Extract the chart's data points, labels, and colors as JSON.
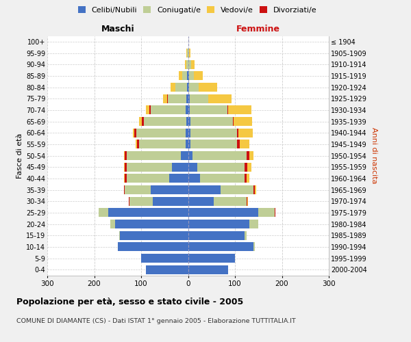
{
  "age_groups": [
    "0-4",
    "5-9",
    "10-14",
    "15-19",
    "20-24",
    "25-29",
    "30-34",
    "35-39",
    "40-44",
    "45-49",
    "50-54",
    "55-59",
    "60-64",
    "65-69",
    "70-74",
    "75-79",
    "80-84",
    "85-89",
    "90-94",
    "95-99",
    "100+"
  ],
  "birth_years": [
    "2000-2004",
    "1995-1999",
    "1990-1994",
    "1985-1989",
    "1980-1984",
    "1975-1979",
    "1970-1974",
    "1965-1969",
    "1960-1964",
    "1955-1959",
    "1950-1954",
    "1945-1949",
    "1940-1944",
    "1935-1939",
    "1930-1934",
    "1925-1929",
    "1920-1924",
    "1915-1919",
    "1910-1914",
    "1905-1909",
    "≤ 1904"
  ],
  "males": {
    "celibi": [
      90,
      100,
      150,
      145,
      155,
      170,
      75,
      80,
      40,
      35,
      15,
      5,
      5,
      4,
      5,
      3,
      2,
      2,
      0,
      0,
      0
    ],
    "coniugati": [
      0,
      0,
      0,
      2,
      10,
      20,
      50,
      55,
      90,
      95,
      115,
      100,
      105,
      90,
      75,
      40,
      25,
      10,
      4,
      2,
      0
    ],
    "vedovi": [
      0,
      0,
      0,
      0,
      0,
      0,
      0,
      0,
      1,
      2,
      2,
      2,
      3,
      5,
      8,
      10,
      10,
      8,
      3,
      1,
      0
    ],
    "divorziati": [
      0,
      0,
      0,
      0,
      1,
      1,
      2,
      2,
      5,
      5,
      5,
      4,
      5,
      5,
      2,
      1,
      0,
      0,
      0,
      0,
      0
    ]
  },
  "females": {
    "nubili": [
      85,
      100,
      140,
      120,
      130,
      150,
      55,
      70,
      25,
      20,
      10,
      5,
      5,
      5,
      4,
      3,
      2,
      2,
      1,
      0,
      0
    ],
    "coniugate": [
      0,
      0,
      2,
      5,
      20,
      35,
      70,
      70,
      95,
      100,
      115,
      100,
      100,
      90,
      80,
      40,
      20,
      10,
      5,
      2,
      0
    ],
    "vedove": [
      0,
      0,
      0,
      0,
      0,
      0,
      1,
      2,
      5,
      8,
      10,
      20,
      30,
      40,
      50,
      50,
      40,
      20,
      8,
      3,
      0
    ],
    "divorziate": [
      0,
      0,
      0,
      0,
      0,
      1,
      2,
      3,
      5,
      7,
      5,
      5,
      3,
      2,
      1,
      0,
      0,
      0,
      0,
      0,
      0
    ]
  },
  "colors": {
    "celibi_nubili": "#4472C4",
    "coniugati": "#BFCE96",
    "vedovi": "#F5C842",
    "divorziati": "#CC1111"
  },
  "xlim": 300,
  "title": "Popolazione per età, sesso e stato civile - 2005",
  "subtitle": "COMUNE DI DIAMANTE (CS) - Dati ISTAT 1° gennaio 2005 - Elaborazione TUTTITALIA.IT",
  "ylabel_left": "Fasce di età",
  "ylabel_right": "Anni di nascita",
  "xlabel_left": "Maschi",
  "xlabel_right": "Femmine",
  "bg_color": "#f0f0f0",
  "plot_bg": "#ffffff"
}
